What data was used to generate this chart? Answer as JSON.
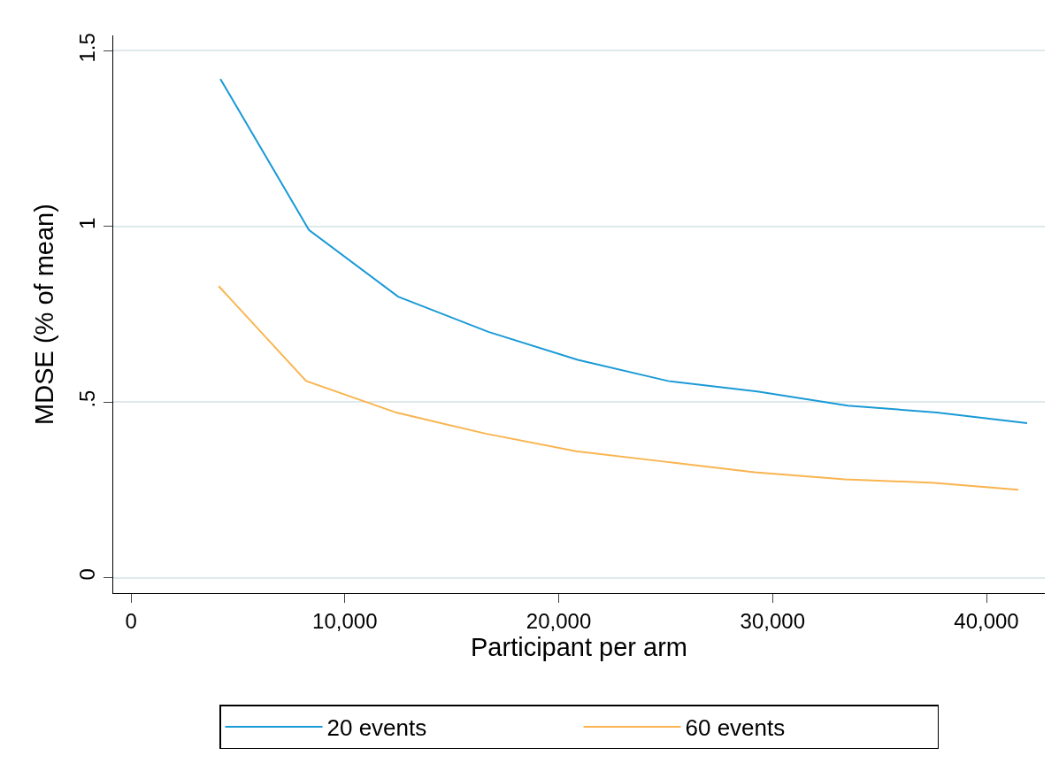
{
  "chart_data": {
    "type": "line",
    "xlabel": "Participant per arm",
    "ylabel": "MDSE (% of mean)",
    "xlim": [
      -830,
      42730
    ],
    "xticks": [
      0,
      {
        "value": 10000,
        "label": "10,000"
      },
      {
        "value": 20000,
        "label": "20,000"
      },
      {
        "value": 30000,
        "label": "30,000"
      },
      {
        "value": 40000,
        "label": "40,000"
      }
    ],
    "ylim": [
      -0.044,
      1.544
    ],
    "yticks": [
      0,
      {
        "value": 0.5,
        "label": ".5"
      },
      1,
      1.5
    ],
    "grid": "y",
    "legend": "bottom",
    "marker": "none",
    "line_style": "solid",
    "series": [
      {
        "name": "20 events",
        "color": "#1a9ad6",
        "x": [
          4180,
          8320,
          12490,
          16710,
          20890,
          25110,
          29290,
          33510,
          37680,
          41900
        ],
        "values": [
          1.42,
          0.99,
          0.8,
          0.7,
          0.62,
          0.56,
          0.53,
          0.49,
          0.47,
          0.44
        ]
      },
      {
        "name": "60 events",
        "color": "#f9b44f",
        "x": [
          4100,
          8190,
          12410,
          16590,
          20810,
          24990,
          29160,
          33380,
          37560,
          41490
        ],
        "values": [
          0.83,
          0.56,
          0.47,
          0.41,
          0.36,
          0.33,
          0.3,
          0.28,
          0.27,
          0.25
        ]
      }
    ]
  }
}
